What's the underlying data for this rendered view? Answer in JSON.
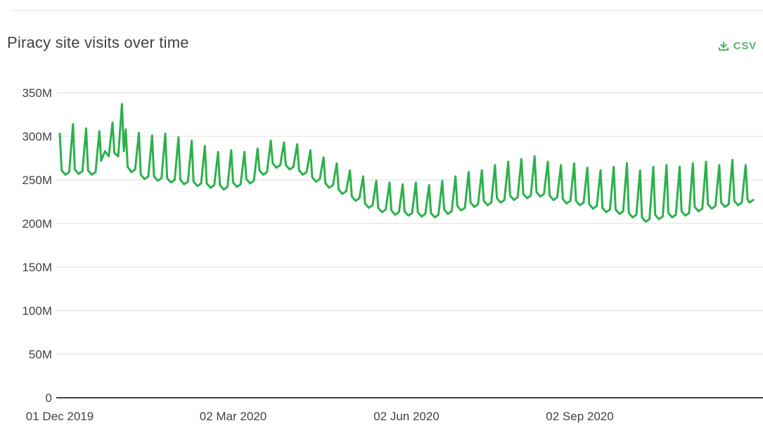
{
  "header": {
    "title": "Piracy site visits over time",
    "csv_label": "CSV"
  },
  "colors": {
    "line_green": "#2cb14c",
    "accent_green": "#56b76d",
    "gridline": "#dedede",
    "axis": "#3e4347",
    "text": "#3e4347"
  },
  "chart_data": {
    "type": "line",
    "title": "Piracy site visits over time",
    "series_name": "Piracy site visits",
    "units": "millions of visits per day",
    "start_date": "2019-12-01",
    "end_date": "2020-12-03",
    "grid": true,
    "legend": false,
    "ylim_millions": [
      0,
      350
    ],
    "yticks": [
      {
        "label": "350M",
        "value": 350
      },
      {
        "label": "300M",
        "value": 300
      },
      {
        "label": "250M",
        "value": 250
      },
      {
        "label": "200M",
        "value": 200
      },
      {
        "label": "150M",
        "value": 150
      },
      {
        "label": "100M",
        "value": 100
      },
      {
        "label": "50M",
        "value": 50
      },
      {
        "label": "0",
        "value": 0
      }
    ],
    "xticks": [
      {
        "label": "01 Dec 2019",
        "day": 0
      },
      {
        "label": "02 Mar 2020",
        "day": 92
      },
      {
        "label": "02 Jun 2020",
        "day": 184
      },
      {
        "label": "02 Sep 2020",
        "day": 276
      }
    ],
    "points_format": [
      "days_since_2019-12-01",
      "visits_millions"
    ],
    "points": [
      [
        0,
        303
      ],
      [
        1,
        261
      ],
      [
        3,
        256
      ],
      [
        5,
        259
      ],
      [
        7,
        314
      ],
      [
        8,
        262
      ],
      [
        10,
        257
      ],
      [
        12,
        260
      ],
      [
        14,
        309
      ],
      [
        15,
        261
      ],
      [
        17,
        256
      ],
      [
        19,
        259
      ],
      [
        21,
        306
      ],
      [
        22,
        272
      ],
      [
        24,
        283
      ],
      [
        26,
        277
      ],
      [
        28,
        316
      ],
      [
        29,
        281
      ],
      [
        31,
        277
      ],
      [
        33,
        337
      ],
      [
        34,
        283
      ],
      [
        35,
        308
      ],
      [
        36,
        265
      ],
      [
        38,
        259
      ],
      [
        40,
        262
      ],
      [
        42,
        304
      ],
      [
        43,
        256
      ],
      [
        45,
        251
      ],
      [
        47,
        254
      ],
      [
        49,
        301
      ],
      [
        50,
        254
      ],
      [
        52,
        249
      ],
      [
        54,
        252
      ],
      [
        56,
        303
      ],
      [
        57,
        252
      ],
      [
        59,
        247
      ],
      [
        61,
        250
      ],
      [
        63,
        299
      ],
      [
        64,
        250
      ],
      [
        66,
        245
      ],
      [
        68,
        248
      ],
      [
        70,
        295
      ],
      [
        71,
        248
      ],
      [
        73,
        243
      ],
      [
        75,
        246
      ],
      [
        77,
        289
      ],
      [
        78,
        246
      ],
      [
        80,
        241
      ],
      [
        82,
        244
      ],
      [
        84,
        282
      ],
      [
        85,
        244
      ],
      [
        87,
        239
      ],
      [
        89,
        242
      ],
      [
        91,
        284
      ],
      [
        92,
        247
      ],
      [
        94,
        242
      ],
      [
        96,
        245
      ],
      [
        98,
        282
      ],
      [
        99,
        251
      ],
      [
        101,
        246
      ],
      [
        103,
        249
      ],
      [
        105,
        286
      ],
      [
        106,
        261
      ],
      [
        108,
        256
      ],
      [
        110,
        259
      ],
      [
        112,
        295
      ],
      [
        113,
        269
      ],
      [
        115,
        264
      ],
      [
        117,
        267
      ],
      [
        119,
        293
      ],
      [
        120,
        267
      ],
      [
        122,
        262
      ],
      [
        124,
        265
      ],
      [
        126,
        291
      ],
      [
        127,
        261
      ],
      [
        129,
        256
      ],
      [
        131,
        259
      ],
      [
        133,
        284
      ],
      [
        134,
        253
      ],
      [
        136,
        248
      ],
      [
        138,
        251
      ],
      [
        140,
        276
      ],
      [
        141,
        246
      ],
      [
        143,
        241
      ],
      [
        145,
        244
      ],
      [
        147,
        269
      ],
      [
        148,
        239
      ],
      [
        150,
        234
      ],
      [
        152,
        237
      ],
      [
        154,
        261
      ],
      [
        155,
        231
      ],
      [
        157,
        226
      ],
      [
        159,
        229
      ],
      [
        161,
        254
      ],
      [
        162,
        223
      ],
      [
        164,
        218
      ],
      [
        166,
        221
      ],
      [
        168,
        249
      ],
      [
        169,
        218
      ],
      [
        171,
        213
      ],
      [
        173,
        216
      ],
      [
        175,
        247
      ],
      [
        176,
        215
      ],
      [
        178,
        210
      ],
      [
        180,
        213
      ],
      [
        182,
        245
      ],
      [
        183,
        214
      ],
      [
        185,
        209
      ],
      [
        187,
        212
      ],
      [
        189,
        247
      ],
      [
        190,
        213
      ],
      [
        192,
        208
      ],
      [
        194,
        211
      ],
      [
        196,
        244
      ],
      [
        197,
        212
      ],
      [
        199,
        207
      ],
      [
        201,
        210
      ],
      [
        203,
        249
      ],
      [
        204,
        216
      ],
      [
        206,
        211
      ],
      [
        208,
        214
      ],
      [
        210,
        254
      ],
      [
        211,
        220
      ],
      [
        213,
        215
      ],
      [
        215,
        218
      ],
      [
        217,
        259
      ],
      [
        218,
        224
      ],
      [
        220,
        219
      ],
      [
        222,
        222
      ],
      [
        224,
        261
      ],
      [
        225,
        226
      ],
      [
        227,
        221
      ],
      [
        229,
        224
      ],
      [
        231,
        267
      ],
      [
        232,
        229
      ],
      [
        234,
        224
      ],
      [
        236,
        227
      ],
      [
        238,
        271
      ],
      [
        239,
        232
      ],
      [
        241,
        227
      ],
      [
        243,
        230
      ],
      [
        245,
        274
      ],
      [
        246,
        234
      ],
      [
        248,
        229
      ],
      [
        250,
        232
      ],
      [
        252,
        277
      ],
      [
        253,
        236
      ],
      [
        255,
        231
      ],
      [
        257,
        234
      ],
      [
        259,
        271
      ],
      [
        260,
        232
      ],
      [
        262,
        227
      ],
      [
        264,
        230
      ],
      [
        266,
        267
      ],
      [
        267,
        228
      ],
      [
        269,
        223
      ],
      [
        271,
        226
      ],
      [
        273,
        269
      ],
      [
        274,
        226
      ],
      [
        276,
        221
      ],
      [
        278,
        224
      ],
      [
        280,
        264
      ],
      [
        281,
        222
      ],
      [
        283,
        217
      ],
      [
        285,
        220
      ],
      [
        287,
        261
      ],
      [
        288,
        218
      ],
      [
        290,
        213
      ],
      [
        292,
        216
      ],
      [
        294,
        265
      ],
      [
        295,
        216
      ],
      [
        297,
        211
      ],
      [
        299,
        214
      ],
      [
        301,
        269
      ],
      [
        302,
        212
      ],
      [
        304,
        207
      ],
      [
        306,
        210
      ],
      [
        308,
        261
      ],
      [
        309,
        207
      ],
      [
        311,
        202
      ],
      [
        313,
        205
      ],
      [
        315,
        265
      ],
      [
        316,
        210
      ],
      [
        318,
        205
      ],
      [
        320,
        208
      ],
      [
        322,
        267
      ],
      [
        323,
        212
      ],
      [
        325,
        207
      ],
      [
        327,
        210
      ],
      [
        329,
        265
      ],
      [
        330,
        214
      ],
      [
        332,
        209
      ],
      [
        334,
        212
      ],
      [
        336,
        269
      ],
      [
        337,
        219
      ],
      [
        339,
        214
      ],
      [
        341,
        217
      ],
      [
        343,
        271
      ],
      [
        344,
        222
      ],
      [
        346,
        217
      ],
      [
        348,
        220
      ],
      [
        350,
        267
      ],
      [
        351,
        224
      ],
      [
        353,
        219
      ],
      [
        355,
        222
      ],
      [
        357,
        273
      ],
      [
        358,
        226
      ],
      [
        360,
        221
      ],
      [
        362,
        224
      ],
      [
        364,
        267
      ],
      [
        365,
        228
      ],
      [
        366,
        224
      ],
      [
        368,
        227
      ]
    ]
  }
}
